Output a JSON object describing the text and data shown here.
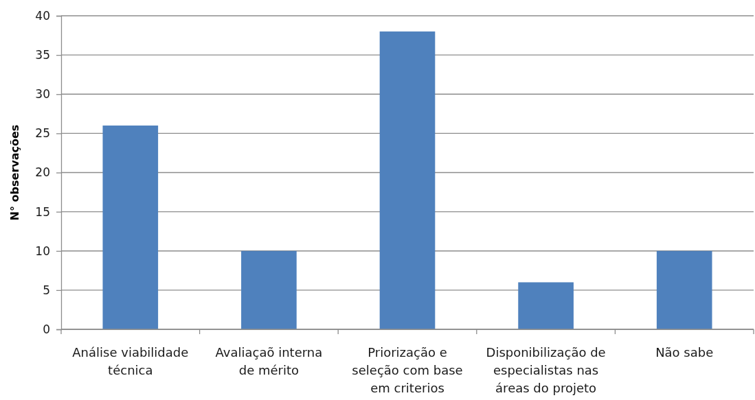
{
  "chart_data": {
    "type": "bar",
    "ylabel": "N° observações",
    "categories": [
      "Análise viabilidade técnica",
      "Avaliaçaõ interna de mérito",
      "Priorização e seleção com base em criterios",
      "Disponibilização de especialistas nas áreas do projeto",
      "Não sabe"
    ],
    "values": [
      26,
      10,
      38,
      6,
      10
    ],
    "color": "#4f81bd",
    "ylim": [
      0,
      40
    ],
    "yticks": [
      0,
      5,
      10,
      15,
      20,
      25,
      30,
      35,
      40
    ],
    "grid": "y"
  }
}
